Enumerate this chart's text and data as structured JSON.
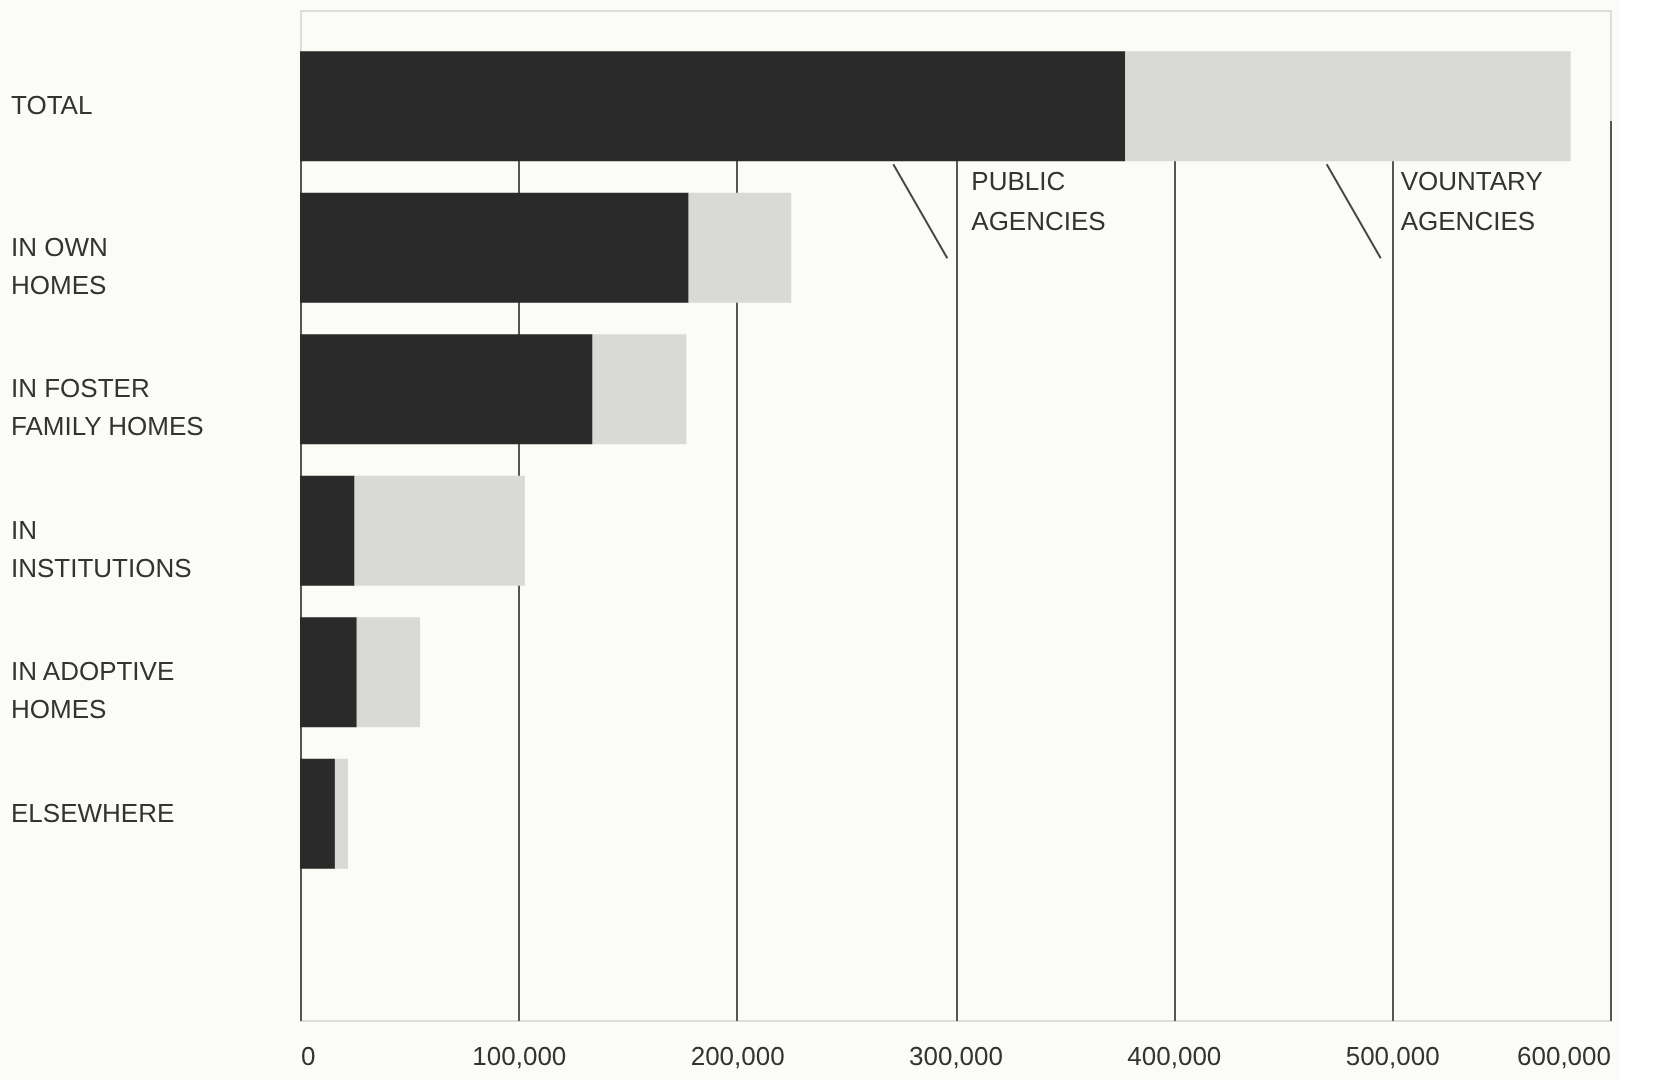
{
  "chart_data": {
    "type": "bar",
    "orientation": "horizontal",
    "stacked": true,
    "categories": [
      "TOTAL",
      "IN OWN\nHOMES",
      "IN FOSTER\nFAMILY HOMES",
      "IN\nINSTITUTIONS",
      "IN ADOPTIVE\nHOMES",
      "ELSEWHERE"
    ],
    "series": [
      {
        "name": "PUBLIC\nAGENCIES",
        "color": "#2a2a2a",
        "values": [
          378000,
          178000,
          134000,
          25000,
          26000,
          16000
        ]
      },
      {
        "name": "VOUNTARY\nAGENCIES",
        "color": "#d9d9d6",
        "values": [
          204000,
          47000,
          43000,
          78000,
          29000,
          6000
        ]
      }
    ],
    "xlim": [
      0,
      600000
    ],
    "xticks": [
      0,
      {
        "value": 100000,
        "label": "100,000"
      },
      {
        "value": 200000,
        "label": "200,000"
      },
      {
        "value": 300000,
        "label": "300,000"
      },
      {
        "value": 400000,
        "label": "400,000"
      },
      {
        "value": 500000,
        "label": "500,000"
      },
      {
        "value": 600000,
        "label": "600,000"
      }
    ],
    "grid": "x",
    "legend": false
  }
}
